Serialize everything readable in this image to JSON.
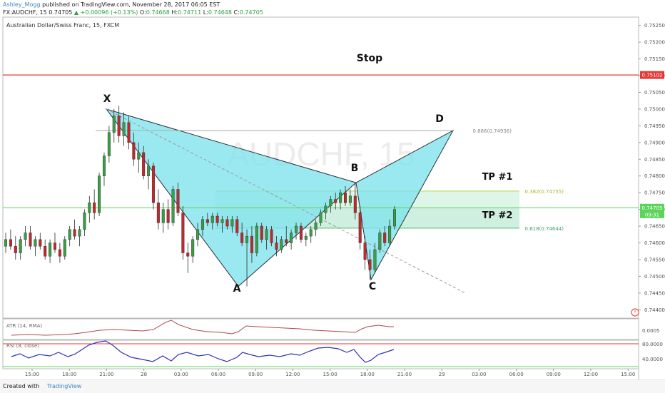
{
  "header": {
    "author": "Ashley_Mogg",
    "published": "published on TradingView.com, November 28, 2017 06:05 EST",
    "symbol": "FX:AUDCHF, 15",
    "price": "0.74705",
    "change": "+0.00096 (+0.13%)",
    "ohlc": {
      "o_label": "O:",
      "o": "0.74668",
      "h_label": "H:",
      "h": "0.74711",
      "l_label": "L:",
      "l": "0.74648",
      "c_label": "C:",
      "c": "0.74705"
    }
  },
  "chart_data": {
    "type": "candlestick",
    "title": "Australian Dollar/Swiss Franc, 15, FXCM",
    "watermark": "AUDCHF, 15",
    "ylim": [
      0.74375,
      0.75275
    ],
    "y_ticks": [
      "0.75250",
      "0.75200",
      "0.75150",
      "0.75100",
      "0.75050",
      "0.75000",
      "0.74950",
      "0.74900",
      "0.74850",
      "0.74800",
      "0.74750",
      "0.74700",
      "0.74650",
      "0.74600",
      "0.74550",
      "0.74500",
      "0.74450",
      "0.74400"
    ],
    "x_ticks": [
      "15:00",
      "18:00",
      "21:00",
      "28",
      "03:00",
      "06:00",
      "09:00",
      "12:00",
      "15:00",
      "18:00",
      "21:00",
      "29",
      "03:00",
      "06:00",
      "09:00",
      "12:00",
      "15:00"
    ],
    "candles": [
      [
        0.7459,
        0.7463,
        0.7457,
        0.7461
      ],
      [
        0.7461,
        0.7464,
        0.7458,
        0.7459
      ],
      [
        0.7459,
        0.7462,
        0.7455,
        0.7457
      ],
      [
        0.7457,
        0.7462,
        0.7455,
        0.7461
      ],
      [
        0.7461,
        0.7465,
        0.7459,
        0.7463
      ],
      [
        0.7463,
        0.7465,
        0.7458,
        0.7459
      ],
      [
        0.7459,
        0.7462,
        0.7456,
        0.7461
      ],
      [
        0.7461,
        0.7463,
        0.7458,
        0.7459
      ],
      [
        0.7459,
        0.7461,
        0.7455,
        0.7456
      ],
      [
        0.7456,
        0.7461,
        0.7454,
        0.746
      ],
      [
        0.746,
        0.7463,
        0.7457,
        0.7458
      ],
      [
        0.7458,
        0.746,
        0.7454,
        0.7456
      ],
      [
        0.7456,
        0.7462,
        0.7455,
        0.7461
      ],
      [
        0.7461,
        0.7465,
        0.7459,
        0.7464
      ],
      [
        0.7464,
        0.7467,
        0.7461,
        0.7462
      ],
      [
        0.7462,
        0.7465,
        0.7459,
        0.7464
      ],
      [
        0.7464,
        0.747,
        0.7462,
        0.7469
      ],
      [
        0.7469,
        0.7474,
        0.7466,
        0.7472
      ],
      [
        0.7472,
        0.7476,
        0.7467,
        0.7469
      ],
      [
        0.7469,
        0.7481,
        0.7468,
        0.748
      ],
      [
        0.748,
        0.7487,
        0.7477,
        0.7486
      ],
      [
        0.7486,
        0.7495,
        0.7484,
        0.7493
      ],
      [
        0.7493,
        0.75,
        0.749,
        0.7498
      ],
      [
        0.7498,
        0.7501,
        0.749,
        0.7492
      ],
      [
        0.7492,
        0.7499,
        0.7489,
        0.7496
      ],
      [
        0.7496,
        0.7498,
        0.7488,
        0.749
      ],
      [
        0.749,
        0.7493,
        0.7483,
        0.7485
      ],
      [
        0.7485,
        0.749,
        0.7481,
        0.7487
      ],
      [
        0.7487,
        0.7489,
        0.7479,
        0.748
      ],
      [
        0.748,
        0.7485,
        0.7476,
        0.7483
      ],
      [
        0.7483,
        0.7484,
        0.747,
        0.7472
      ],
      [
        0.7472,
        0.7476,
        0.7464,
        0.7466
      ],
      [
        0.7466,
        0.7472,
        0.7463,
        0.747
      ],
      [
        0.747,
        0.7473,
        0.7464,
        0.7466
      ],
      [
        0.7466,
        0.7477,
        0.7465,
        0.7476
      ],
      [
        0.7476,
        0.7478,
        0.7468,
        0.7469
      ],
      [
        0.7469,
        0.7471,
        0.7455,
        0.7457
      ],
      [
        0.7457,
        0.746,
        0.7451,
        0.7456
      ],
      [
        0.7456,
        0.7462,
        0.7454,
        0.7461
      ],
      [
        0.7461,
        0.7466,
        0.7459,
        0.7464
      ],
      [
        0.7464,
        0.7468,
        0.7462,
        0.7467
      ],
      [
        0.7467,
        0.7469,
        0.7465,
        0.7466
      ],
      [
        0.7466,
        0.7469,
        0.7464,
        0.7468
      ],
      [
        0.7468,
        0.7469,
        0.7465,
        0.7466
      ],
      [
        0.7466,
        0.7468,
        0.7463,
        0.7467
      ],
      [
        0.7467,
        0.7468,
        0.7464,
        0.7465
      ],
      [
        0.7465,
        0.7468,
        0.7463,
        0.7467
      ],
      [
        0.7467,
        0.7468,
        0.7462,
        0.7463
      ],
      [
        0.7463,
        0.7466,
        0.7459,
        0.746
      ],
      [
        0.746,
        0.7464,
        0.7447,
        0.7462
      ],
      [
        0.7462,
        0.7465,
        0.7454,
        0.7457
      ],
      [
        0.7457,
        0.7466,
        0.7456,
        0.7465
      ],
      [
        0.7465,
        0.7466,
        0.746,
        0.7461
      ],
      [
        0.7461,
        0.7465,
        0.7458,
        0.7464
      ],
      [
        0.7464,
        0.7465,
        0.7459,
        0.746
      ],
      [
        0.746,
        0.7462,
        0.7456,
        0.7458
      ],
      [
        0.7458,
        0.7462,
        0.7457,
        0.7461
      ],
      [
        0.7461,
        0.7465,
        0.7459,
        0.746
      ],
      [
        0.746,
        0.7464,
        0.7458,
        0.7463
      ],
      [
        0.7463,
        0.7466,
        0.7461,
        0.7465
      ],
      [
        0.7465,
        0.7466,
        0.746,
        0.7461
      ],
      [
        0.7461,
        0.7463,
        0.7459,
        0.7462
      ],
      [
        0.7462,
        0.7465,
        0.746,
        0.7464
      ],
      [
        0.7464,
        0.7467,
        0.7462,
        0.7466
      ],
      [
        0.7466,
        0.747,
        0.7465,
        0.7469
      ],
      [
        0.7469,
        0.7472,
        0.7467,
        0.7471
      ],
      [
        0.7471,
        0.7474,
        0.7469,
        0.7473
      ],
      [
        0.7473,
        0.7475,
        0.747,
        0.7472
      ],
      [
        0.7472,
        0.7476,
        0.747,
        0.7475
      ],
      [
        0.7475,
        0.7477,
        0.7471,
        0.7472
      ],
      [
        0.7472,
        0.7476,
        0.7471,
        0.7474
      ],
      [
        0.7474,
        0.7478,
        0.7467,
        0.7469
      ],
      [
        0.7469,
        0.7471,
        0.7458,
        0.746
      ],
      [
        0.746,
        0.7462,
        0.7452,
        0.7455
      ],
      [
        0.7455,
        0.7458,
        0.7449,
        0.7452
      ],
      [
        0.7452,
        0.746,
        0.7451,
        0.7458
      ],
      [
        0.7458,
        0.7464,
        0.7457,
        0.7463
      ],
      [
        0.7463,
        0.7465,
        0.7459,
        0.746
      ],
      [
        0.746,
        0.7467,
        0.7459,
        0.7465
      ],
      [
        0.7465,
        0.7471,
        0.7464,
        0.747
      ]
    ],
    "fib_levels": [
      {
        "label": "0.886(0.74936)",
        "value": 0.74936
      },
      {
        "label": "0.382(0.74755)",
        "value": 0.74755
      },
      {
        "label": "0.618(0.74644)",
        "value": 0.74644
      }
    ],
    "stop_level": {
      "label": "0.75102",
      "value": 0.75102
    },
    "current_price": {
      "label": "0.74705",
      "value": 0.74705,
      "countdown": "09:31"
    },
    "pattern_points": [
      {
        "name": "X",
        "value": 0.75
      },
      {
        "name": "A",
        "value": 0.7447
      },
      {
        "name": "B",
        "value": 0.7478
      },
      {
        "name": "C",
        "value": 0.7449
      },
      {
        "name": "D",
        "value": 0.74936
      }
    ],
    "annotations": [
      "Stop",
      "TP #1",
      "TP #2"
    ],
    "indicators": [
      {
        "name": "ATR (14, RMA)",
        "ticks": [
          "0.0005"
        ]
      },
      {
        "name": "RSI (8, close)",
        "ticks": [
          "80.0000",
          "40.0000"
        ]
      }
    ]
  },
  "footer": {
    "created": "Created with",
    "brand": "TradingView"
  }
}
